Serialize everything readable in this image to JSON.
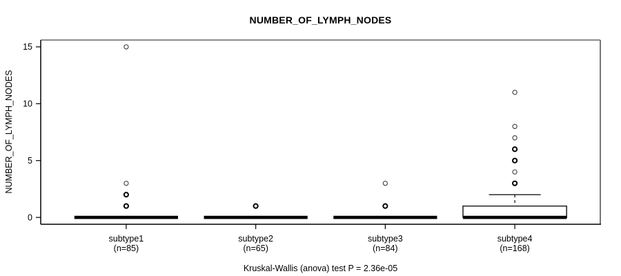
{
  "figure": {
    "background": "#ffffff",
    "text_color": "#000000"
  },
  "chart_data": {
    "type": "boxplot",
    "title": "NUMBER_OF_LYMPH_NODES",
    "ylabel": "NUMBER_OF_LYMPH_NODES",
    "caption": "Kruskal-Wallis (anova) test P = 2.36e-05",
    "ylim": [
      0,
      15
    ],
    "yticks": [
      0,
      5,
      10,
      15
    ],
    "grid": false,
    "legend": "none",
    "frame_colors": {
      "top": "#8c8c8c",
      "right": "#757575",
      "bottom": "#000000",
      "left": "#000000"
    },
    "box_color": "#000000",
    "groups": [
      {
        "label": "subtype1",
        "count_label": "(n=85)",
        "q1": 0,
        "median": 0,
        "q3": 0,
        "whisker_low": 0,
        "whisker_high": 0,
        "outliers": [
          {
            "value": 1,
            "bold": true
          },
          {
            "value": 2,
            "bold": true
          },
          {
            "value": 3,
            "bold": false
          },
          {
            "value": 15,
            "bold": false
          }
        ]
      },
      {
        "label": "subtype2",
        "count_label": "(n=65)",
        "q1": 0,
        "median": 0,
        "q3": 0,
        "whisker_low": 0,
        "whisker_high": 0,
        "outliers": [
          {
            "value": 1,
            "bold": true
          }
        ]
      },
      {
        "label": "subtype3",
        "count_label": "(n=84)",
        "q1": 0,
        "median": 0,
        "q3": 0,
        "whisker_low": 0,
        "whisker_high": 0,
        "outliers": [
          {
            "value": 1,
            "bold": true
          },
          {
            "value": 3,
            "bold": false
          }
        ]
      },
      {
        "label": "subtype4",
        "count_label": "(n=168)",
        "q1": 0,
        "median": 0,
        "q3": 1,
        "whisker_low": 0,
        "whisker_high": 2,
        "outliers": [
          {
            "value": 3,
            "bold": true
          },
          {
            "value": 4,
            "bold": false
          },
          {
            "value": 5,
            "bold": true
          },
          {
            "value": 6,
            "bold": true
          },
          {
            "value": 7,
            "bold": false
          },
          {
            "value": 8,
            "bold": false
          },
          {
            "value": 11,
            "bold": false
          }
        ]
      }
    ]
  }
}
